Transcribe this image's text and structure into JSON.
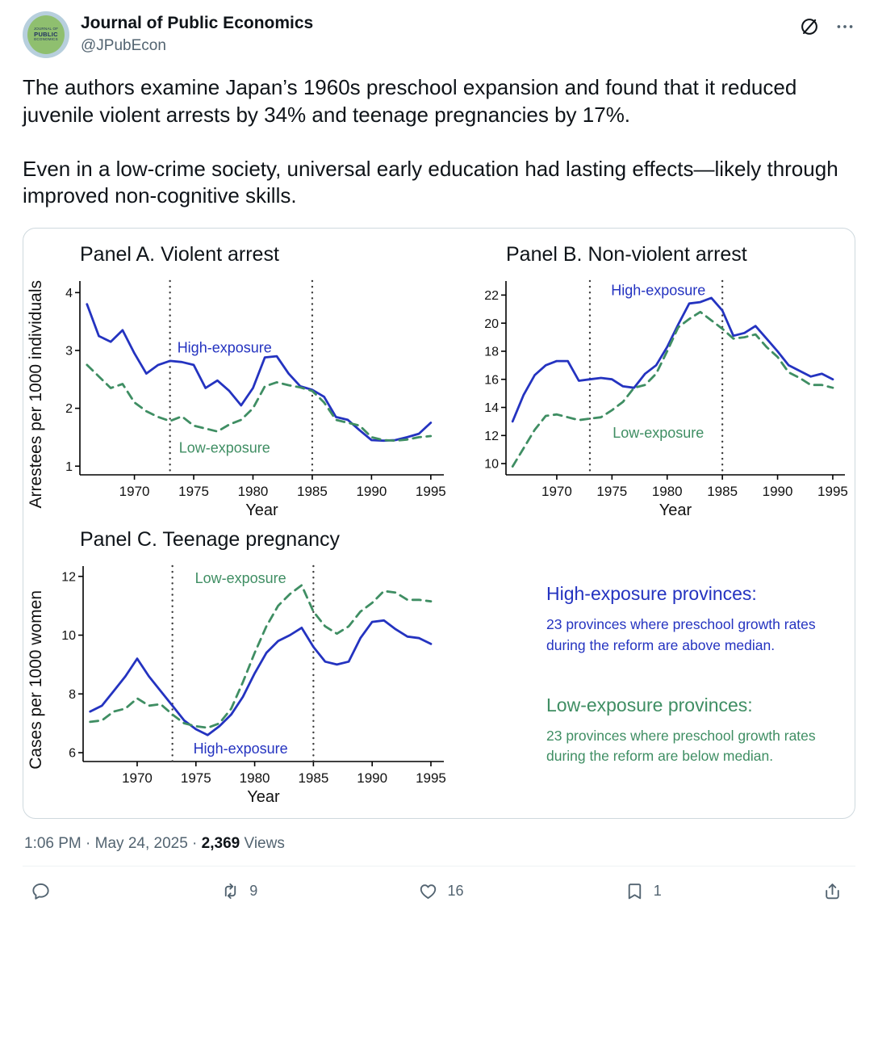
{
  "header": {
    "display_name": "Journal of Public Economics",
    "handle": "@JPubEcon",
    "avatar_lines": [
      "JOURNAL OF",
      "PUBLIC",
      "ECONOMICS"
    ]
  },
  "tweet": {
    "paragraph1": "The authors examine Japan’s 1960s preschool expansion and found that it reduced juvenile violent arrests by 34% and teenage pregnancies by 17%.",
    "paragraph2": "Even in a low-crime society, universal early education had lasting effects—likely through improved non-cognitive skills."
  },
  "colors": {
    "high": "#2433c0",
    "low": "#3f8e63",
    "vline": "#3c3c3c",
    "axis": "#000000"
  },
  "figure": {
    "legend": [
      {
        "heading": "High-exposure provinces:",
        "body": "23 provinces where preschool growth rates during the reform are above median."
      },
      {
        "heading": "Low-exposure provinces:",
        "body": "23 provinces where preschool growth rates during the reform are below median."
      }
    ]
  },
  "chart_data": [
    {
      "type": "line",
      "title": "Panel A. Violent arrest",
      "ylabel": "Arrestees per 1000 individuals",
      "xlabel": "Year",
      "xlim": [
        1965.4,
        1996.1
      ],
      "ylim": [
        0.85,
        4.2
      ],
      "yticks": [
        1,
        2,
        3,
        4
      ],
      "xticks": [
        1970,
        1975,
        1980,
        1985,
        1990,
        1995
      ],
      "vlines": [
        1973,
        1985
      ],
      "x": [
        1966,
        1967,
        1968,
        1969,
        1970,
        1971,
        1972,
        1973,
        1974,
        1975,
        1976,
        1977,
        1978,
        1979,
        1980,
        1981,
        1982,
        1983,
        1984,
        1985,
        1986,
        1987,
        1988,
        1989,
        1990,
        1991,
        1992,
        1993,
        1994,
        1995
      ],
      "series": [
        {
          "name": "High-exposure",
          "color_key": "high",
          "dash": false,
          "values": [
            3.8,
            3.25,
            3.15,
            3.35,
            2.95,
            2.6,
            2.75,
            2.82,
            2.8,
            2.75,
            2.35,
            2.48,
            2.3,
            2.05,
            2.35,
            2.88,
            2.9,
            2.6,
            2.38,
            2.32,
            2.2,
            1.85,
            1.8,
            1.62,
            1.45,
            1.44,
            1.45,
            1.5,
            1.56,
            1.75
          ]
        },
        {
          "name": "Low-exposure",
          "color_key": "low",
          "dash": true,
          "values": [
            2.75,
            2.55,
            2.35,
            2.42,
            2.1,
            1.95,
            1.85,
            1.78,
            1.86,
            1.7,
            1.65,
            1.6,
            1.72,
            1.8,
            2.0,
            2.38,
            2.45,
            2.4,
            2.36,
            2.3,
            2.1,
            1.8,
            1.75,
            1.7,
            1.5,
            1.45,
            1.44,
            1.46,
            1.5,
            1.52
          ]
        }
      ],
      "annotations": [
        {
          "text": "High-exposure",
          "x": 1977.6,
          "y": 3.05,
          "color_key": "high"
        },
        {
          "text": "Low-exposure",
          "x": 1977.6,
          "y": 1.32,
          "color_key": "low"
        }
      ]
    },
    {
      "type": "line",
      "title": "Panel B. Non-violent arrest",
      "ylabel": "",
      "xlabel": "Year",
      "xlim": [
        1965.4,
        1996.1
      ],
      "ylim": [
        9.2,
        23.0
      ],
      "yticks": [
        10,
        12,
        14,
        16,
        18,
        20,
        22
      ],
      "xticks": [
        1970,
        1975,
        1980,
        1985,
        1990,
        1995
      ],
      "vlines": [
        1973,
        1985
      ],
      "x": [
        1966,
        1967,
        1968,
        1969,
        1970,
        1971,
        1972,
        1973,
        1974,
        1975,
        1976,
        1977,
        1978,
        1979,
        1980,
        1981,
        1982,
        1983,
        1984,
        1985,
        1986,
        1987,
        1988,
        1989,
        1990,
        1991,
        1992,
        1993,
        1994,
        1995
      ],
      "series": [
        {
          "name": "High-exposure",
          "color_key": "high",
          "dash": false,
          "values": [
            13.0,
            14.9,
            16.3,
            17.0,
            17.3,
            17.3,
            15.9,
            16.0,
            16.1,
            16.0,
            15.5,
            15.4,
            16.4,
            17.0,
            18.3,
            19.9,
            21.4,
            21.5,
            21.8,
            20.9,
            19.1,
            19.3,
            19.8,
            18.9,
            18.0,
            17.0,
            16.6,
            16.2,
            16.4,
            16.0
          ]
        },
        {
          "name": "Low-exposure",
          "color_key": "low",
          "dash": true,
          "values": [
            9.8,
            11.1,
            12.4,
            13.4,
            13.5,
            13.3,
            13.1,
            13.2,
            13.3,
            13.8,
            14.4,
            15.4,
            15.6,
            16.4,
            18.0,
            19.7,
            20.3,
            20.8,
            20.2,
            19.6,
            18.9,
            19.0,
            19.2,
            18.3,
            17.6,
            16.5,
            16.1,
            15.6,
            15.6,
            15.4
          ]
        }
      ],
      "annotations": [
        {
          "text": "High-exposure",
          "x": 1979.2,
          "y": 22.35,
          "color_key": "high"
        },
        {
          "text": "Low-exposure",
          "x": 1979.2,
          "y": 12.2,
          "color_key": "low"
        }
      ]
    },
    {
      "type": "line",
      "title": "Panel C. Teenage pregnancy",
      "ylabel": "Cases per 1000 women",
      "xlabel": "Year",
      "xlim": [
        1965.4,
        1996.1
      ],
      "ylim": [
        5.7,
        12.35
      ],
      "yticks": [
        6,
        8,
        10,
        12
      ],
      "xticks": [
        1970,
        1975,
        1980,
        1985,
        1990,
        1995
      ],
      "vlines": [
        1973,
        1985
      ],
      "x": [
        1966,
        1967,
        1968,
        1969,
        1970,
        1971,
        1972,
        1973,
        1974,
        1975,
        1976,
        1977,
        1978,
        1979,
        1980,
        1981,
        1982,
        1983,
        1984,
        1985,
        1986,
        1987,
        1988,
        1989,
        1990,
        1991,
        1992,
        1993,
        1994,
        1995
      ],
      "series": [
        {
          "name": "High-exposure",
          "color_key": "high",
          "dash": false,
          "values": [
            7.4,
            7.6,
            8.1,
            8.6,
            9.2,
            8.6,
            8.1,
            7.6,
            7.1,
            6.8,
            6.6,
            6.9,
            7.3,
            7.9,
            8.7,
            9.4,
            9.8,
            10.0,
            10.25,
            9.6,
            9.1,
            9.0,
            9.1,
            9.9,
            10.45,
            10.5,
            10.2,
            9.95,
            9.9,
            9.7
          ]
        },
        {
          "name": "Low-exposure",
          "color_key": "low",
          "dash": true,
          "values": [
            7.05,
            7.1,
            7.4,
            7.5,
            7.85,
            7.6,
            7.65,
            7.3,
            7.0,
            6.9,
            6.85,
            7.0,
            7.5,
            8.4,
            9.4,
            10.3,
            11.0,
            11.4,
            11.7,
            10.8,
            10.3,
            10.05,
            10.3,
            10.8,
            11.1,
            11.5,
            11.45,
            11.2,
            11.2,
            11.15
          ]
        }
      ],
      "annotations": [
        {
          "text": "Low-exposure",
          "x": 1978.8,
          "y": 11.95,
          "color_key": "low"
        },
        {
          "text": "High-exposure",
          "x": 1978.8,
          "y": 6.15,
          "color_key": "high"
        }
      ]
    }
  ],
  "meta": {
    "prefix": "1:06 PM · May 24, 2025 ·",
    "views_count": "2,369",
    "views_label": "Views"
  },
  "actions": {
    "reply_count": "",
    "retweet_count": "9",
    "like_count": "16",
    "bookmark_count": "1"
  }
}
